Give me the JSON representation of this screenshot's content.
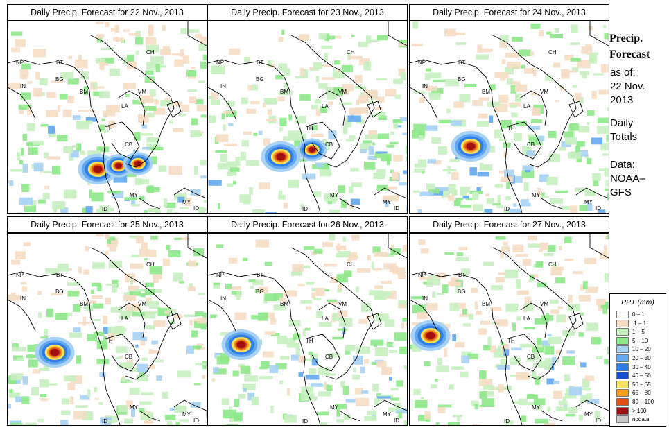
{
  "panels": [
    {
      "title": "Daily Precip. Forecast for  22 Nov., 2013",
      "storm": [
        [
          130,
          243
        ],
        [
          160,
          238
        ],
        [
          188,
          235
        ]
      ]
    },
    {
      "title": "Daily Precip. Forecast for  23 Nov., 2013",
      "storm": [
        [
          105,
          225
        ],
        [
          150,
          215
        ]
      ]
    },
    {
      "title": "Daily Precip. Forecast for  24 Nov., 2013",
      "storm": [
        [
          88,
          210
        ]
      ]
    },
    {
      "title": "Daily Precip. Forecast for  25 Nov., 2013",
      "storm": [
        [
          68,
          507
        ]
      ]
    },
    {
      "title": "Daily Precip. Forecast for  26 Nov., 2013",
      "storm": [
        [
          48,
          496
        ]
      ]
    },
    {
      "title": "Daily Precip. Forecast for  27 Nov., 2013",
      "storm": [
        [
          30,
          483
        ]
      ]
    }
  ],
  "map_labels": [
    "NP",
    "BT",
    "BG",
    "IN",
    "BM",
    "CH",
    "VM",
    "LA",
    "TH",
    "CB",
    "MY",
    "ID",
    "MY",
    "ID"
  ],
  "sidebar": {
    "heading_1": "Precip.",
    "heading_2": "Forecast",
    "line_1": "as of:",
    "line_2": "22 Nov.",
    "line_3": "2013",
    "line_4": "Daily",
    "line_5": "Totals",
    "line_6": "Data:",
    "line_7": "NOAA–",
    "line_8": "GFS"
  },
  "legend": {
    "title": "PPT (mm)",
    "items": [
      {
        "label": "0 – 1",
        "color": "#ffffff"
      },
      {
        "label": ".1 – 1",
        "color": "#f5ddc4"
      },
      {
        "label": "1 – 5",
        "color": "#c8f0c0"
      },
      {
        "label": "5 – 10",
        "color": "#8ee88a"
      },
      {
        "label": "10 – 20",
        "color": "#a7d2f5"
      },
      {
        "label": "20 – 30",
        "color": "#63a8f0"
      },
      {
        "label": "30 – 40",
        "color": "#2e7fe6"
      },
      {
        "label": "40 – 50",
        "color": "#1450c8"
      },
      {
        "label": "50 – 65",
        "color": "#f5e060"
      },
      {
        "label": "65 – 80",
        "color": "#f5a020"
      },
      {
        "label": "80 – 100",
        "color": "#e05010"
      },
      {
        "label": "> 100",
        "color": "#a01010"
      },
      {
        "label": "nodata",
        "color": "#c8c8c8"
      }
    ]
  }
}
